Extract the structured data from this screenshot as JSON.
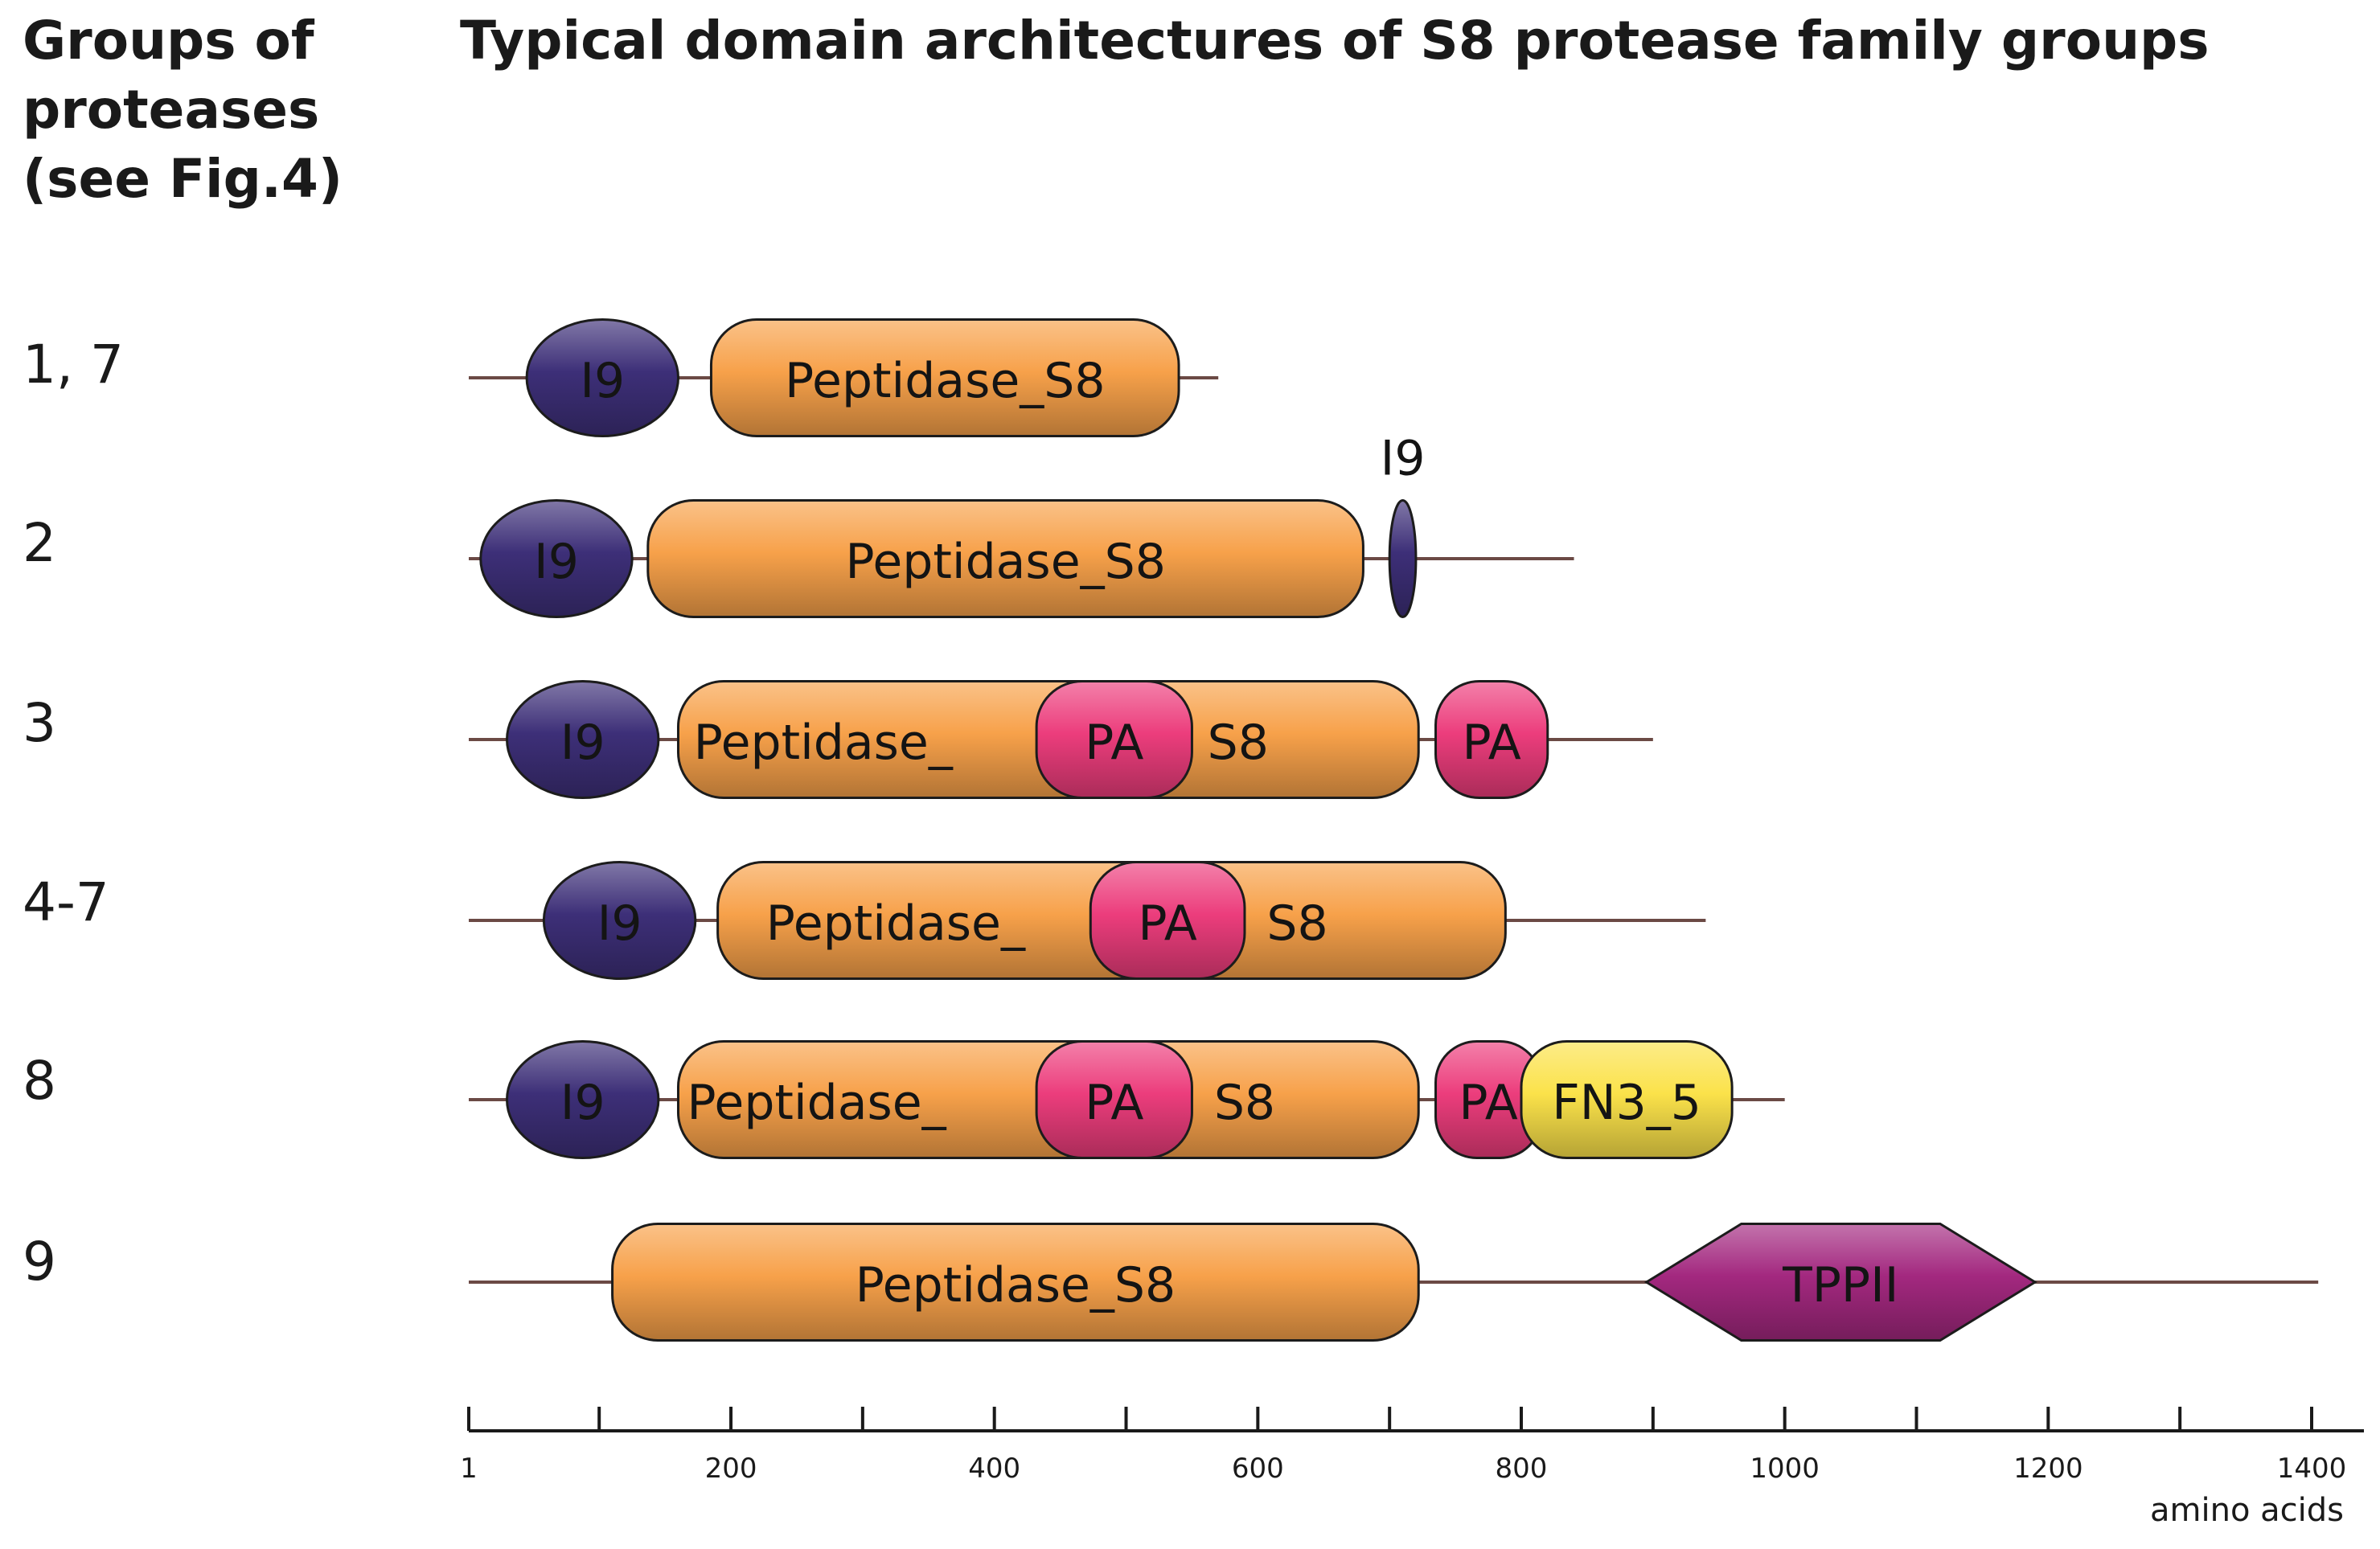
{
  "header": {
    "groups_title_lines": [
      "Groups of",
      "proteases",
      "(see Fig.4)"
    ],
    "main_title": "Typical domain architectures of S8 protease family groups"
  },
  "colors": {
    "backbone": "#6b4a45",
    "i9": "#3d2f78",
    "peptidase": "#f7a14a",
    "pa": "#ec3d7c",
    "fn3": "#fbe24a",
    "tppii": "#a3287f",
    "outline": "#1c1c1c"
  },
  "axis": {
    "min": 1,
    "max": 1400,
    "ticks": [
      1,
      100,
      200,
      300,
      400,
      500,
      600,
      700,
      800,
      900,
      1000,
      1100,
      1200,
      1300,
      1400
    ],
    "tick_labels": [
      1,
      200,
      400,
      600,
      800,
      1000,
      1200,
      1400
    ],
    "unit_label": "amino acids"
  },
  "rows": [
    {
      "group_label": "1, 7",
      "length": 570,
      "domains": [
        {
          "type": "i9",
          "shape": "ellipse",
          "start": 45,
          "end": 160,
          "label": "I9"
        },
        {
          "type": "peptidase",
          "shape": "pill",
          "start": 185,
          "end": 540,
          "label": "Peptidase_S8"
        }
      ]
    },
    {
      "group_label": "2",
      "length": 840,
      "domains": [
        {
          "type": "i9",
          "shape": "ellipse",
          "start": 10,
          "end": 125,
          "label": "I9"
        },
        {
          "type": "peptidase",
          "shape": "pill",
          "start": 137,
          "end": 680,
          "label": "Peptidase_S8"
        },
        {
          "type": "i9",
          "shape": "ellipse",
          "start": 700,
          "end": 720,
          "label": "",
          "top_label": "I9"
        }
      ]
    },
    {
      "group_label": "3",
      "length": 900,
      "domains": [
        {
          "type": "i9",
          "shape": "ellipse",
          "start": 30,
          "end": 145,
          "label": "I9"
        },
        {
          "type": "peptidase",
          "shape": "pill",
          "start": 160,
          "end": 722,
          "label": "Peptidase_",
          "label_pos": 270,
          "label2": "S8",
          "label2_pos": 585
        },
        {
          "type": "pa",
          "shape": "pill",
          "start": 432,
          "end": 550,
          "label": "PA"
        },
        {
          "type": "pa",
          "shape": "pill",
          "start": 735,
          "end": 820,
          "label": "PA"
        }
      ]
    },
    {
      "group_label": "4-7",
      "length": 940,
      "domains": [
        {
          "type": "i9",
          "shape": "ellipse",
          "start": 58,
          "end": 173,
          "label": "I9"
        },
        {
          "type": "peptidase",
          "shape": "pill",
          "start": 190,
          "end": 788,
          "label": "Peptidase_",
          "label_pos": 325,
          "label2": "S8",
          "label2_pos": 630
        },
        {
          "type": "pa",
          "shape": "pill",
          "start": 473,
          "end": 590,
          "label": "PA"
        }
      ]
    },
    {
      "group_label": "8",
      "length": 1000,
      "domains": [
        {
          "type": "i9",
          "shape": "ellipse",
          "start": 30,
          "end": 145,
          "label": "I9"
        },
        {
          "type": "peptidase",
          "shape": "pill",
          "start": 160,
          "end": 722,
          "label": "Peptidase_",
          "label_pos": 265,
          "label2": "S8",
          "label2_pos": 590
        },
        {
          "type": "pa",
          "shape": "pill",
          "start": 432,
          "end": 550,
          "label": "PA"
        },
        {
          "type": "pa",
          "shape": "pill",
          "start": 735,
          "end": 815,
          "label": "PA"
        },
        {
          "type": "fn3",
          "shape": "pill",
          "start": 800,
          "end": 960,
          "label": "FN3_5"
        }
      ]
    },
    {
      "group_label": "9",
      "length": 1405,
      "domains": [
        {
          "type": "peptidase",
          "shape": "pill",
          "start": 110,
          "end": 722,
          "label": "Peptidase_S8"
        },
        {
          "type": "tppii",
          "shape": "hexagon",
          "start": 895,
          "end": 1190,
          "label": "TPPII"
        }
      ]
    }
  ]
}
